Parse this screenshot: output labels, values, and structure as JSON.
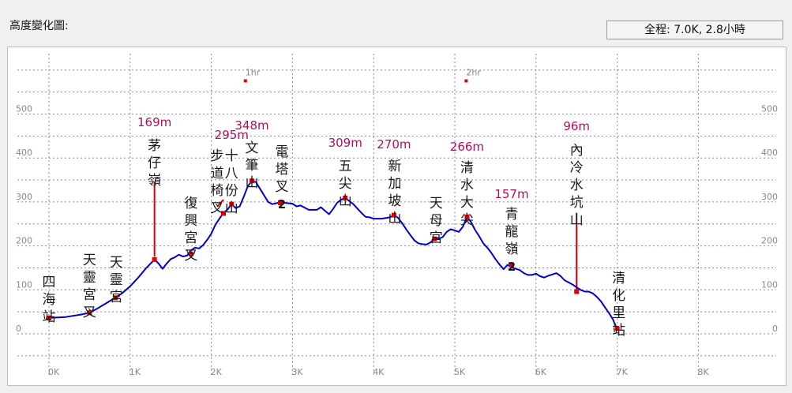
{
  "header": {
    "title": "高度變化圖:",
    "summary": "全程: 7.0K, 2.8小時"
  },
  "colors": {
    "line": "#0000cc",
    "marker": "#dd0000",
    "elevation_label": "#b0105a",
    "grid": "#8c8c8c",
    "tick": "#888888"
  },
  "chart_data": {
    "type": "line",
    "xlabel": "",
    "ylabel": "",
    "xlim": [
      0,
      8.5
    ],
    "ylim": [
      -50,
      560
    ],
    "x_ticks": [
      {
        "v": 0,
        "label": "0K"
      },
      {
        "v": 1,
        "label": "1K"
      },
      {
        "v": 2,
        "label": "2K"
      },
      {
        "v": 3,
        "label": "3K"
      },
      {
        "v": 4,
        "label": "4K"
      },
      {
        "v": 5,
        "label": "5K"
      },
      {
        "v": 6,
        "label": "6K"
      },
      {
        "v": 7,
        "label": "7K"
      },
      {
        "v": 8,
        "label": "8K"
      }
    ],
    "y_ticks": [
      {
        "v": 0,
        "label": "0"
      },
      {
        "v": 100,
        "label": "100"
      },
      {
        "v": 200,
        "label": "200"
      },
      {
        "v": 300,
        "label": "300"
      },
      {
        "v": 400,
        "label": "400"
      },
      {
        "v": 500,
        "label": "500"
      }
    ],
    "grid": true,
    "time_markers": [
      {
        "x": 2.42,
        "label": "1hr"
      },
      {
        "x": 5.14,
        "label": "2hr"
      }
    ],
    "series": [
      {
        "x": [
          0,
          0.2,
          0.4,
          0.5,
          0.6,
          0.8,
          0.9,
          1.0,
          1.1,
          1.2,
          1.3,
          1.35,
          1.4,
          1.45,
          1.5,
          1.55,
          1.6,
          1.65,
          1.7,
          1.75,
          1.8,
          1.85,
          1.9,
          1.95,
          2.0,
          2.05,
          2.1,
          2.15,
          2.2,
          2.25,
          2.3,
          2.35,
          2.4,
          2.45,
          2.5,
          2.55,
          2.6,
          2.65,
          2.7,
          2.75,
          2.8,
          2.85,
          2.9,
          3.0,
          3.05,
          3.1,
          3.15,
          3.2,
          3.3,
          3.35,
          3.4,
          3.45,
          3.5,
          3.55,
          3.6,
          3.65,
          3.7,
          3.75,
          3.8,
          3.85,
          3.9,
          3.95,
          4.0,
          4.1,
          4.2,
          4.25,
          4.3,
          4.35,
          4.4,
          4.45,
          4.5,
          4.55,
          4.6,
          4.65,
          4.7,
          4.75,
          4.8,
          4.85,
          4.9,
          4.95,
          5.0,
          5.05,
          5.1,
          5.15,
          5.2,
          5.25,
          5.3,
          5.35,
          5.4,
          5.45,
          5.5,
          5.55,
          5.6,
          5.65,
          5.7,
          5.75,
          5.8,
          5.85,
          5.9,
          5.95,
          6.0,
          6.05,
          6.1,
          6.15,
          6.2,
          6.25,
          6.3,
          6.35,
          6.4,
          6.45,
          6.5,
          6.55,
          6.6,
          6.65,
          6.7,
          6.75,
          6.8,
          6.85,
          6.9,
          6.95,
          6.98,
          7.0
        ],
        "values": [
          36,
          38,
          44,
          48,
          58,
          80,
          92,
          108,
          128,
          150,
          169,
          160,
          148,
          160,
          170,
          174,
          180,
          176,
          178,
          190,
          196,
          194,
          202,
          214,
          228,
          248,
          262,
          275,
          283,
          295,
          286,
          290,
          312,
          336,
          348,
          345,
          330,
          315,
          300,
          295,
          297,
          300,
          298,
          296,
          290,
          292,
          287,
          282,
          282,
          288,
          280,
          272,
          284,
          298,
          305,
          309,
          302,
          295,
          285,
          275,
          266,
          265,
          262,
          262,
          265,
          270,
          264,
          252,
          238,
          225,
          213,
          206,
          204,
          203,
          208,
          216,
          216,
          220,
          232,
          238,
          235,
          232,
          244,
          266,
          254,
          236,
          222,
          206,
          196,
          184,
          170,
          158,
          147,
          157,
          151,
          148,
          145,
          138,
          134,
          134,
          137,
          131,
          128,
          132,
          135,
          138,
          132,
          122,
          117,
          112,
          106,
          100,
          96,
          96,
          92,
          84,
          74,
          60,
          47,
          32,
          18,
          12
        ]
      }
    ],
    "waypoints": [
      {
        "x": 0,
        "y": 36,
        "name": "四\n海\n站"
      },
      {
        "x": 0.5,
        "y": 48,
        "name": "天\n靈\n宮\n叉"
      },
      {
        "x": 0.82,
        "y": 82,
        "name": "天\n靈\n宮"
      },
      {
        "x": 1.3,
        "y": 169,
        "name": "茅\n仔\n嶺",
        "elevation": "169m"
      },
      {
        "x": 1.75,
        "y": 182,
        "name": "復\n興\n宮\n叉"
      },
      {
        "x": 2.15,
        "y": 274,
        "name": "步\n道\n椅\n叉"
      },
      {
        "x": 2.25,
        "y": 295,
        "name": "十\n八\n份\n山",
        "elevation": "295m"
      },
      {
        "x": 2.5,
        "y": 348,
        "name": "文\n筆\n山",
        "elevation": "348m"
      },
      {
        "x": 2.85,
        "y": 298,
        "name": "電\n塔\n叉\n2"
      },
      {
        "x": 3.65,
        "y": 309,
        "name": "五\n尖\n山",
        "elevation": "309m"
      },
      {
        "x": 4.25,
        "y": 270,
        "name": "新\n加\n坡\n山",
        "elevation": "270m"
      },
      {
        "x": 4.75,
        "y": 216,
        "name": "天\n母\n宮"
      },
      {
        "x": 5.15,
        "y": 266,
        "name": "清\n水\n大\n尖",
        "elevation": "266m"
      },
      {
        "x": 5.7,
        "y": 157,
        "name": "青\n龍\n嶺\n2",
        "elevation": "157m"
      },
      {
        "x": 6.5,
        "y": 96,
        "name": "內\n冷\n水\n坑\n山",
        "elevation": "96m"
      },
      {
        "x": 7.0,
        "y": 12,
        "name": "清\n化\n里\n站"
      }
    ]
  }
}
